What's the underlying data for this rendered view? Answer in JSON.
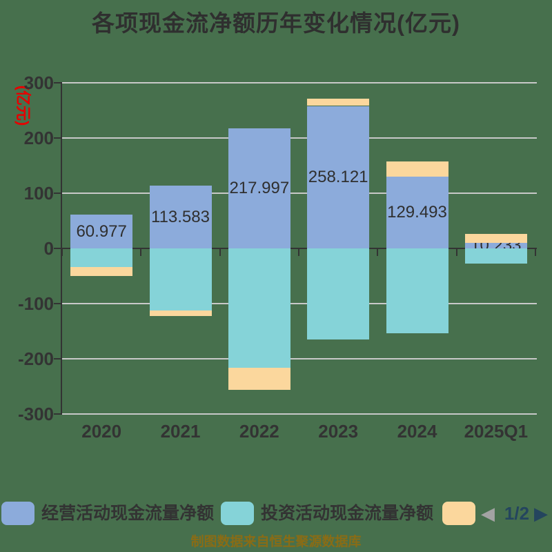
{
  "chart_data": {
    "type": "bar",
    "stacked": true,
    "title": "各项现金流净额历年变化情况(亿元)",
    "ylabel": "(亿元)",
    "categories": [
      "2020",
      "2021",
      "2022",
      "2023",
      "2024",
      "2025Q1"
    ],
    "series": [
      {
        "name": "经营活动现金流量净额",
        "color": "#8cabdb",
        "values": [
          60.977,
          113.583,
          217.997,
          258.121,
          129.493,
          10.233
        ]
      },
      {
        "name": "投资活动现金流量净额",
        "color": "#85d3d8",
        "values": [
          -34,
          -112,
          -216,
          -165,
          -154,
          -27
        ]
      },
      {
        "name": "",
        "color": "#fbd79d",
        "values": [
          -16,
          -11,
          -40,
          13,
          28,
          16
        ]
      }
    ],
    "value_labels": [
      "60.977",
      "113.583",
      "217.997",
      "258.121",
      "129.493",
      "10.233"
    ],
    "yticks": [
      300,
      200,
      100,
      0,
      -100,
      -200,
      -300
    ],
    "ylim": [
      -300,
      300
    ],
    "grid": true,
    "legend_position": "bottom"
  },
  "legend": {
    "items": [
      {
        "label": "经营活动现金流量净额",
        "color": "#8cabdb"
      },
      {
        "label": "投资活动现金流量净额",
        "color": "#85d3d8"
      },
      {
        "label": "",
        "color": "#fbd79d"
      }
    ],
    "pager": {
      "prev_icon": "◀",
      "label": "1/2",
      "next_icon": "▶"
    }
  },
  "footer": "制图数据来自恒生聚源数据库",
  "colors": {
    "background": "#47704d",
    "axis": "#333333",
    "grid": "#c9c9c9",
    "title_text": "#2f2f2f",
    "ylabel_red": "#e60000",
    "footer_text": "#8a6c15",
    "pager_active": "#24455e",
    "pager_inactive": "#a3a3a3"
  }
}
